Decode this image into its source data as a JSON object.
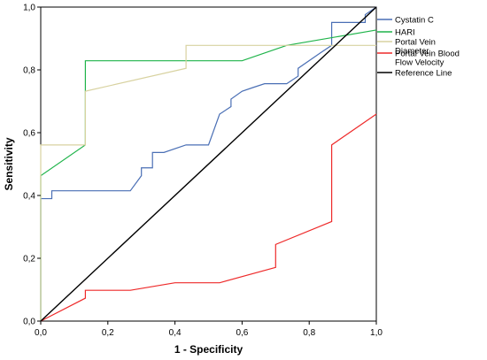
{
  "chart_data": {
    "type": "line",
    "title": "",
    "xlabel": "1 - Specificity",
    "ylabel": "Sensitivity",
    "xlim": [
      0,
      1
    ],
    "ylim": [
      0,
      1
    ],
    "xticks": [
      "0,0",
      "0,2",
      "0,4",
      "0,6",
      "0,8",
      "1,0"
    ],
    "yticks": [
      "0,0",
      "0,2",
      "0,4",
      "0,6",
      "0,8",
      "1,0"
    ],
    "grid": false,
    "legend_placement": "right",
    "series": [
      {
        "name": "Cystatin C",
        "color": "#4a6fb5",
        "x": [
          0,
          0,
          0.033,
          0.033,
          0.267,
          0.3,
          0.3,
          0.333,
          0.333,
          0.367,
          0.433,
          0.5,
          0.533,
          0.567,
          0.567,
          0.6,
          0.633,
          0.667,
          0.733,
          0.767,
          0.767,
          0.833,
          0.867,
          0.867,
          0.967,
          0.967,
          1
        ],
        "y": [
          0,
          0.39,
          0.39,
          0.415,
          0.415,
          0.463,
          0.488,
          0.488,
          0.537,
          0.537,
          0.561,
          0.561,
          0.659,
          0.683,
          0.707,
          0.732,
          0.744,
          0.756,
          0.756,
          0.78,
          0.805,
          0.854,
          0.878,
          0.951,
          0.951,
          0.976,
          1
        ]
      },
      {
        "name": "HARI",
        "color": "#1fb44a",
        "x": [
          0,
          0,
          0.133,
          0.133,
          0.6,
          0.733,
          1
        ],
        "y": [
          0,
          0.463,
          0.561,
          0.829,
          0.829,
          0.878,
          0.927
        ]
      },
      {
        "name": "Portal Vein Diameter",
        "color": "#d8d2a0",
        "x": [
          0,
          0,
          0.133,
          0.133,
          0.433,
          0.433,
          0.7,
          1
        ],
        "y": [
          0,
          0.561,
          0.561,
          0.732,
          0.805,
          0.878,
          0.878,
          0.878
        ]
      },
      {
        "name": "Portal Vein Blood Flow Velocity",
        "color": "#ee2a2a",
        "x": [
          0,
          0.133,
          0.133,
          0.267,
          0.4,
          0.533,
          0.7,
          0.7,
          0.867,
          0.867,
          1
        ],
        "y": [
          0,
          0.073,
          0.098,
          0.098,
          0.122,
          0.122,
          0.171,
          0.244,
          0.317,
          0.561,
          0.659
        ]
      },
      {
        "name": "Reference Line",
        "color": "#000000",
        "x": [
          0,
          1
        ],
        "y": [
          0,
          1
        ]
      }
    ]
  }
}
